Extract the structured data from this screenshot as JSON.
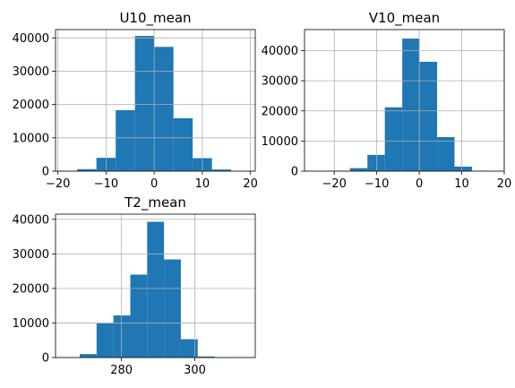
{
  "chart_data": [
    {
      "type": "bar",
      "title": "U10_mean",
      "bar_color": "#1f77b4",
      "grid": true,
      "xlim": [
        -20.5,
        21
      ],
      "ylim": [
        0,
        42500
      ],
      "xticks": [
        -20,
        -10,
        0,
        10,
        20
      ],
      "yticks": [
        0,
        10000,
        20000,
        30000,
        40000
      ],
      "bins": [
        {
          "x0": -16,
          "x1": -12,
          "count": 600
        },
        {
          "x0": -12,
          "x1": -8,
          "count": 4000
        },
        {
          "x0": -8,
          "x1": -4,
          "count": 18300
        },
        {
          "x0": -4,
          "x1": 0,
          "count": 40600
        },
        {
          "x0": 0,
          "x1": 4,
          "count": 37300
        },
        {
          "x0": 4,
          "x1": 8,
          "count": 15900
        },
        {
          "x0": 8,
          "x1": 12,
          "count": 3900
        },
        {
          "x0": 12,
          "x1": 16,
          "count": 500
        },
        {
          "x0": 16,
          "x1": 20,
          "count": 30
        },
        {
          "x0": 20,
          "x1": 24,
          "count": 0
        }
      ]
    },
    {
      "type": "bar",
      "title": "V10_mean",
      "bar_color": "#1f77b4",
      "grid": true,
      "xlim": [
        -27,
        20
      ],
      "ylim": [
        0,
        47000
      ],
      "xticks": [
        -20,
        -10,
        0,
        10,
        20
      ],
      "yticks": [
        0,
        10000,
        20000,
        30000,
        40000
      ],
      "bins": [
        {
          "x0": -24.5,
          "x1": -20.4,
          "count": 20
        },
        {
          "x0": -20.4,
          "x1": -16.3,
          "count": 100
        },
        {
          "x0": -16.3,
          "x1": -12.2,
          "count": 1000
        },
        {
          "x0": -12.2,
          "x1": -8.1,
          "count": 5400
        },
        {
          "x0": -8.1,
          "x1": -4.0,
          "count": 21200
        },
        {
          "x0": -4.0,
          "x1": 0.1,
          "count": 44000
        },
        {
          "x0": 0.1,
          "x1": 4.2,
          "count": 36300
        },
        {
          "x0": 4.2,
          "x1": 8.3,
          "count": 11300
        },
        {
          "x0": 8.3,
          "x1": 12.4,
          "count": 1500
        },
        {
          "x0": 12.4,
          "x1": 16.5,
          "count": 100
        }
      ]
    },
    {
      "type": "bar",
      "title": "T2_mean",
      "bar_color": "#1f77b4",
      "grid": true,
      "xlim": [
        262,
        316.5
      ],
      "ylim": [
        0,
        41500
      ],
      "xticks": [
        280,
        300
      ],
      "yticks": [
        0,
        10000,
        20000,
        30000,
        40000
      ],
      "bins": [
        {
          "x0": 264,
          "x1": 268.6,
          "count": 100
        },
        {
          "x0": 268.6,
          "x1": 273.2,
          "count": 1000
        },
        {
          "x0": 273.2,
          "x1": 277.8,
          "count": 9900
        },
        {
          "x0": 277.8,
          "x1": 282.4,
          "count": 12200
        },
        {
          "x0": 282.4,
          "x1": 287.0,
          "count": 24000
        },
        {
          "x0": 287.0,
          "x1": 291.6,
          "count": 39300
        },
        {
          "x0": 291.6,
          "x1": 296.2,
          "count": 28400
        },
        {
          "x0": 296.2,
          "x1": 300.8,
          "count": 5300
        },
        {
          "x0": 300.8,
          "x1": 305.4,
          "count": 300
        },
        {
          "x0": 305.4,
          "x1": 310.0,
          "count": 20
        }
      ]
    }
  ]
}
